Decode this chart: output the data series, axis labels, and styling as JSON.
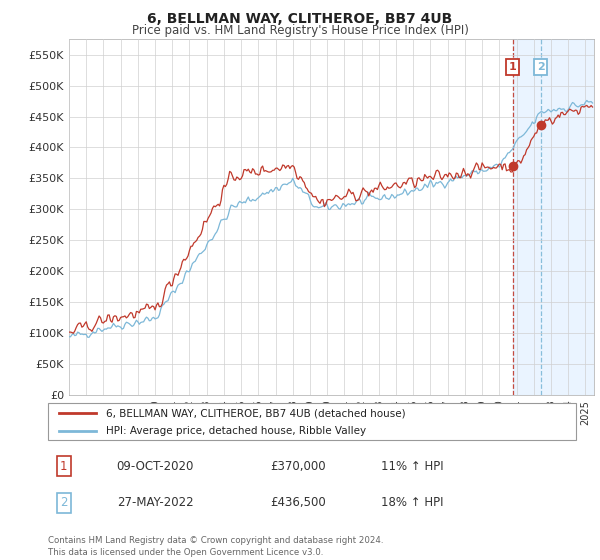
{
  "title": "6, BELLMAN WAY, CLITHEROE, BB7 4UB",
  "subtitle": "Price paid vs. HM Land Registry's House Price Index (HPI)",
  "ylabel_ticks": [
    "£0",
    "£50K",
    "£100K",
    "£150K",
    "£200K",
    "£250K",
    "£300K",
    "£350K",
    "£400K",
    "£450K",
    "£500K",
    "£550K"
  ],
  "ytick_values": [
    0,
    50000,
    100000,
    150000,
    200000,
    250000,
    300000,
    350000,
    400000,
    450000,
    500000,
    550000
  ],
  "ylim": [
    0,
    575000
  ],
  "xlim_start": 1995.0,
  "xlim_end": 2025.5,
  "hpi_color": "#7db8d8",
  "price_color": "#c0392b",
  "marker1_date": 2020.78,
  "marker1_value": 370000,
  "marker2_date": 2022.41,
  "marker2_value": 436500,
  "legend_line1": "6, BELLMAN WAY, CLITHEROE, BB7 4UB (detached house)",
  "legend_line2": "HPI: Average price, detached house, Ribble Valley",
  "table_row1": [
    "1",
    "09-OCT-2020",
    "£370,000",
    "11% ↑ HPI"
  ],
  "table_row2": [
    "2",
    "27-MAY-2022",
    "£436,500",
    "18% ↑ HPI"
  ],
  "footnote": "Contains HM Land Registry data © Crown copyright and database right 2024.\nThis data is licensed under the Open Government Licence v3.0.",
  "grid_color": "#d0d0d0",
  "shade_color": "#ddeeff"
}
